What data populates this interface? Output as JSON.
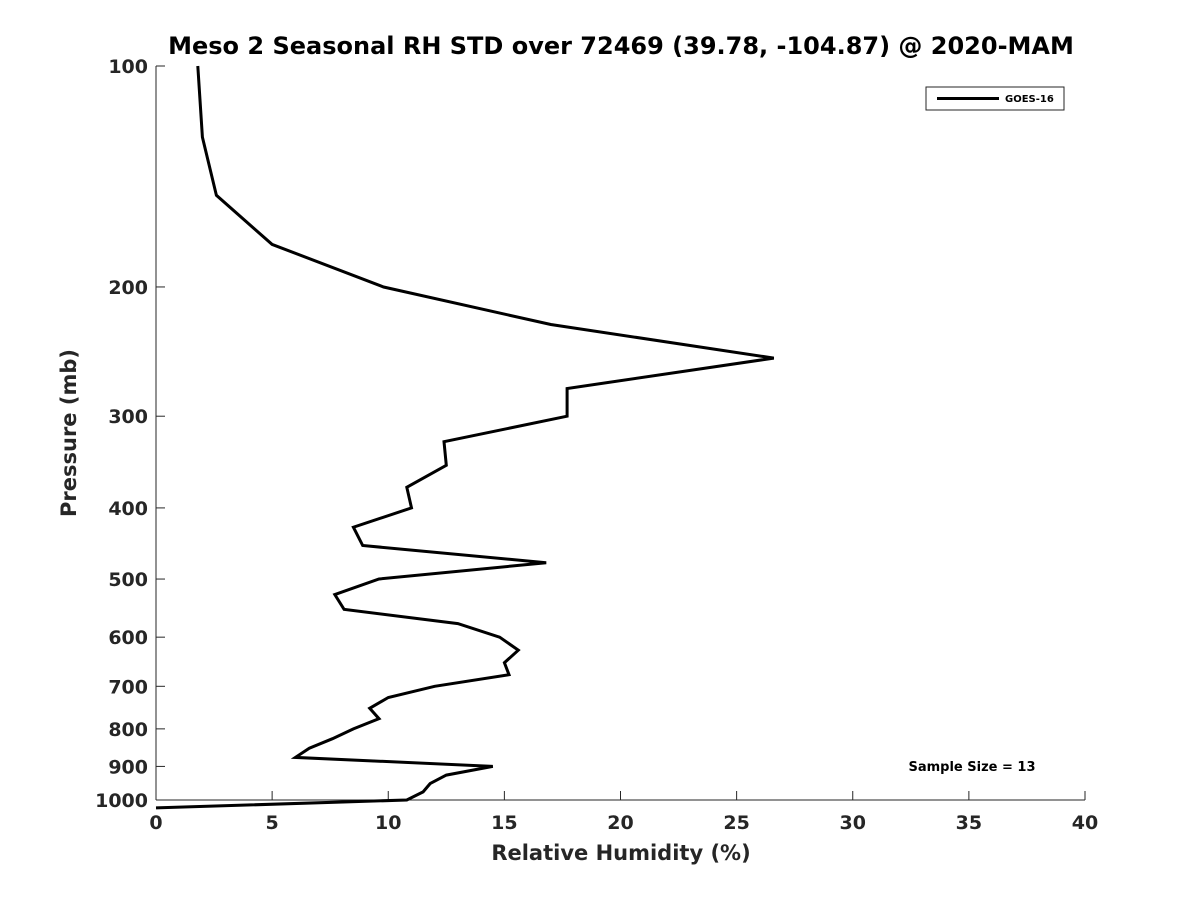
{
  "chart_data": {
    "type": "line",
    "title": "Meso 2 Seasonal RH STD over 72469 (39.78, -104.87) @ 2020-MAM",
    "xlabel": "Relative Humidity (%)",
    "ylabel": "Pressure (mb)",
    "xlim": [
      0,
      40
    ],
    "ylim": [
      100,
      1000
    ],
    "yscale": "log",
    "yreversed": true,
    "xticks": [
      "0",
      "5",
      "10",
      "15",
      "20",
      "25",
      "30",
      "35",
      "40"
    ],
    "yticks": [
      "100",
      "200",
      "300",
      "400",
      "500",
      "600",
      "700",
      "800",
      "900",
      "1000"
    ],
    "legend_position": "top-right",
    "annotation": "Sample Size = 13",
    "series": [
      {
        "name": "GOES-16",
        "color": "#000000",
        "points": [
          {
            "x": 1.8,
            "p": 100
          },
          {
            "x": 2.0,
            "p": 125
          },
          {
            "x": 2.6,
            "p": 150
          },
          {
            "x": 5.0,
            "p": 175
          },
          {
            "x": 9.8,
            "p": 200
          },
          {
            "x": 17.0,
            "p": 225
          },
          {
            "x": 26.6,
            "p": 250
          },
          {
            "x": 17.7,
            "p": 275
          },
          {
            "x": 17.7,
            "p": 300
          },
          {
            "x": 12.4,
            "p": 325
          },
          {
            "x": 12.5,
            "p": 350
          },
          {
            "x": 10.8,
            "p": 375
          },
          {
            "x": 11.0,
            "p": 400
          },
          {
            "x": 8.5,
            "p": 425
          },
          {
            "x": 8.9,
            "p": 450
          },
          {
            "x": 16.8,
            "p": 475
          },
          {
            "x": 9.6,
            "p": 500
          },
          {
            "x": 7.7,
            "p": 525
          },
          {
            "x": 8.1,
            "p": 550
          },
          {
            "x": 13.0,
            "p": 575
          },
          {
            "x": 14.8,
            "p": 600
          },
          {
            "x": 15.6,
            "p": 625
          },
          {
            "x": 15.0,
            "p": 650
          },
          {
            "x": 15.2,
            "p": 675
          },
          {
            "x": 12.0,
            "p": 700
          },
          {
            "x": 10.0,
            "p": 725
          },
          {
            "x": 9.2,
            "p": 750
          },
          {
            "x": 9.6,
            "p": 775
          },
          {
            "x": 8.5,
            "p": 800
          },
          {
            "x": 7.6,
            "p": 825
          },
          {
            "x": 6.6,
            "p": 850
          },
          {
            "x": 6.0,
            "p": 875
          },
          {
            "x": 14.5,
            "p": 900
          },
          {
            "x": 12.5,
            "p": 925
          },
          {
            "x": 11.8,
            "p": 950
          },
          {
            "x": 11.5,
            "p": 975
          },
          {
            "x": 10.8,
            "p": 1000
          },
          {
            "x": 0.0,
            "p": 1025
          }
        ]
      }
    ]
  }
}
